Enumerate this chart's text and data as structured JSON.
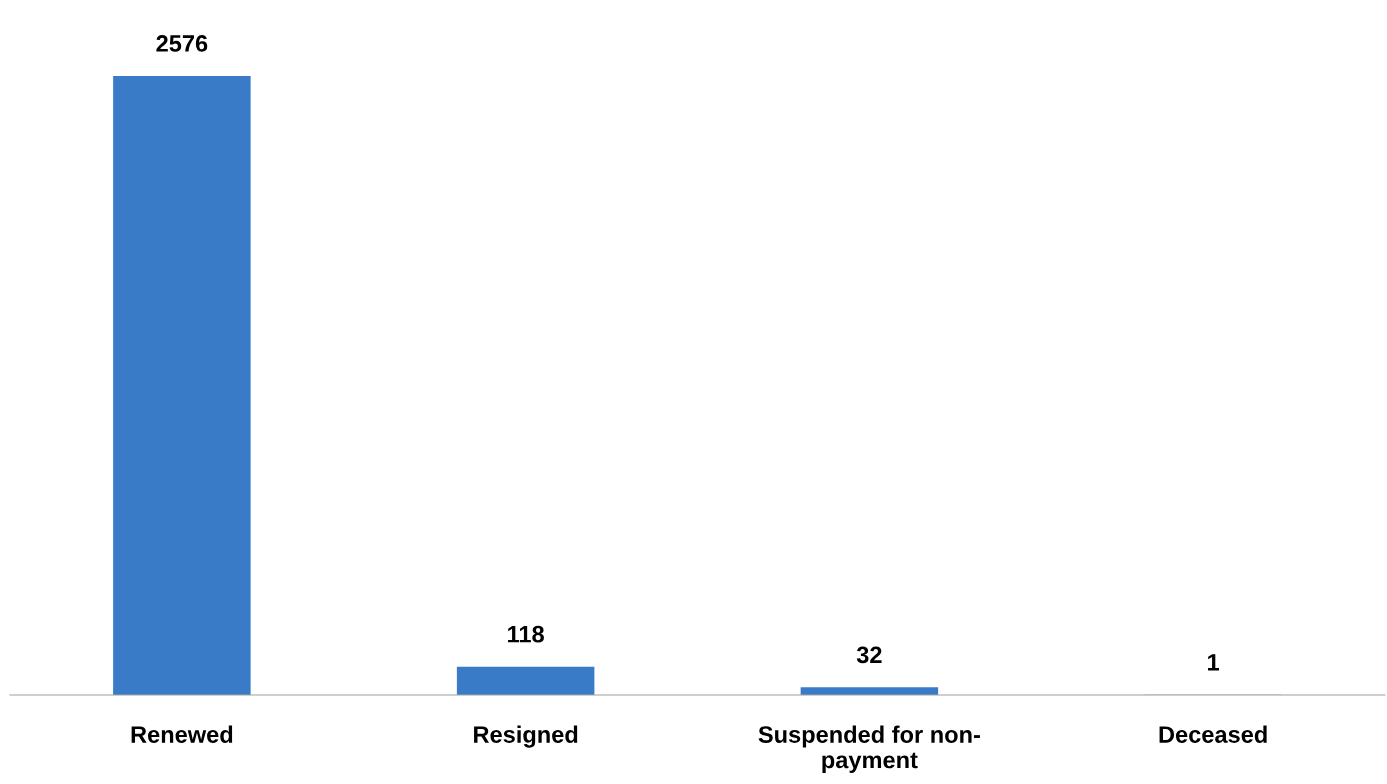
{
  "chart_data": {
    "type": "bar",
    "categories": [
      "Renewed",
      "Resigned",
      "Suspended for non-\npayment",
      "Deceased"
    ],
    "values": [
      2576,
      118,
      32,
      1
    ],
    "color": "#3a7bc8",
    "data_labels": true,
    "grid": false,
    "legend": false
  }
}
